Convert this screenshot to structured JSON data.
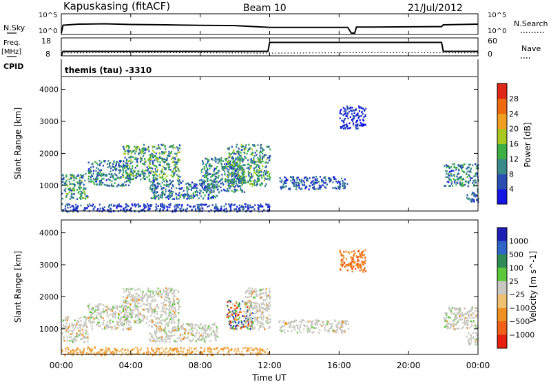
{
  "header": {
    "station": "Kapuskasing (fitACF)",
    "beam": "Beam 10",
    "date": "21/Jul/2012"
  },
  "side_labels": {
    "nsky": "N.Sky",
    "freq_line1": "Freq.",
    "freq_line2": "[MHz]",
    "cpid": "CPID",
    "nsearch": "N.Search",
    "nave": "Nave"
  },
  "mode_label": "themis (tau) -3310",
  "colors": {
    "power_scale": [
      "#1414e6",
      "#2a4fb4",
      "#3a8a8a",
      "#3cb043",
      "#a8c820",
      "#f0a020",
      "#ee6a10",
      "#e02818"
    ],
    "velocity_scale": [
      "#1e1eb4",
      "#2d64c8",
      "#2e8b57",
      "#5cc83c",
      "#c8c8c0",
      "#f0c070",
      "#f09020",
      "#f06018",
      "#e82010"
    ],
    "ground_scatter": "#c8c8c0"
  },
  "chart_data": [
    {
      "type": "line",
      "panel": "noise",
      "ylabel_left": "N.Sky",
      "ylabel_right": "N.Search",
      "yticks_left": [
        "10^5",
        "10^0"
      ],
      "yticks_right": [
        "10^5",
        "10^0"
      ],
      "x_hours": [
        0.0,
        0.1,
        1.0,
        2.5,
        4.0,
        6.0,
        8.0,
        10.0,
        12.0,
        14.0,
        16.5,
        16.7,
        16.9,
        17.0,
        18.0,
        20.0,
        21.9,
        22.0,
        23.0,
        24.0
      ],
      "nsky_log": [
        0.0,
        2.2,
        2.5,
        2.6,
        2.4,
        2.3,
        2.15,
        2.1,
        1.6,
        1.6,
        1.6,
        0.0,
        0.0,
        1.7,
        1.7,
        1.75,
        1.8,
        2.3,
        2.4,
        2.5
      ]
    },
    {
      "type": "line",
      "panel": "frequency-nave",
      "ylabel_left": "Freq. [MHz]",
      "ylabel_right": "Nave",
      "yticks_left": [
        "18",
        "8"
      ],
      "yticks_right": [
        "60",
        "0"
      ],
      "ylim_left": [
        8,
        18
      ],
      "ylim_right": [
        0,
        60
      ],
      "freq_x_hours": [
        0.0,
        0.1,
        11.9,
        12.0,
        16.7,
        17.0,
        21.9,
        22.0,
        24.0
      ],
      "freq_mhz": [
        8,
        10.5,
        10.5,
        15.5,
        15.5,
        15.5,
        15.5,
        10.5,
        10.5
      ],
      "nave_x_hours": [
        0.0,
        6.0,
        12.0,
        18.0,
        24.0
      ],
      "nave": [
        10,
        11,
        9,
        11,
        10
      ]
    },
    {
      "type": "heatmap",
      "panel": "power",
      "title": "themis (tau) -3310",
      "ylabel": "Slant Range [km]",
      "ylim": [
        200,
        4400
      ],
      "yticks": [
        1000,
        2000,
        3000,
        4000
      ],
      "colorbar_label": "Power [dB]",
      "colorbar_ticks": [
        4,
        8,
        12,
        16,
        20,
        24,
        28
      ],
      "colorbar_range": [
        0,
        32
      ],
      "scatter_regions": [
        {
          "t0": 0.0,
          "t1": 1.5,
          "r0": 600,
          "r1": 1400,
          "peak": 16
        },
        {
          "t0": 1.5,
          "t1": 4.0,
          "r0": 1000,
          "r1": 1800,
          "peak": 14
        },
        {
          "t0": 3.5,
          "t1": 6.8,
          "r0": 1200,
          "r1": 2300,
          "peak": 18
        },
        {
          "t0": 5.0,
          "t1": 9.0,
          "r0": 600,
          "r1": 1200,
          "peak": 12
        },
        {
          "t0": 8.0,
          "t1": 10.5,
          "r0": 800,
          "r1": 1900,
          "peak": 14
        },
        {
          "t0": 9.5,
          "t1": 12.0,
          "r0": 1000,
          "r1": 2300,
          "peak": 16
        },
        {
          "t0": 0.0,
          "t1": 12.0,
          "r0": 200,
          "r1": 450,
          "peak": 8
        },
        {
          "t0": 12.5,
          "t1": 16.5,
          "r0": 900,
          "r1": 1300,
          "peak": 10
        },
        {
          "t0": 16.0,
          "t1": 17.5,
          "r0": 2800,
          "r1": 3500,
          "peak": 6
        },
        {
          "t0": 22.0,
          "t1": 24.0,
          "r0": 1000,
          "r1": 1700,
          "peak": 14
        },
        {
          "t0": 23.3,
          "t1": 24.0,
          "r0": 500,
          "r1": 900,
          "peak": 10
        }
      ]
    },
    {
      "type": "heatmap",
      "panel": "velocity",
      "ylabel": "Slant Range [km]",
      "ylim": [
        200,
        4400
      ],
      "yticks": [
        1000,
        2000,
        3000,
        4000
      ],
      "colorbar_label": "Velocity [m s^-1]",
      "colorbar_ticks": [
        "1000",
        "500",
        "100",
        "25",
        "−25",
        "−100",
        "−500",
        "−1000"
      ],
      "xlabel": "Time UT",
      "xticks": [
        "00:00",
        "04:00",
        "08:00",
        "12:00",
        "16:00",
        "20:00",
        "00:00"
      ],
      "xlim_hours": [
        0,
        24
      ],
      "scatter_regions": [
        {
          "t0": 0.0,
          "t1": 1.5,
          "r0": 600,
          "r1": 1400,
          "velocity": 25
        },
        {
          "t0": 1.5,
          "t1": 4.0,
          "r0": 1000,
          "r1": 1800,
          "velocity": 25
        },
        {
          "t0": 3.5,
          "t1": 6.8,
          "r0": 1200,
          "r1": 2300,
          "velocity": 25
        },
        {
          "t0": 5.0,
          "t1": 9.0,
          "r0": 600,
          "r1": 1200,
          "velocity": 25
        },
        {
          "t0": 9.5,
          "t1": 11.0,
          "r0": 1000,
          "r1": 1900,
          "velocity": 300
        },
        {
          "t0": 10.5,
          "t1": 12.0,
          "r0": 1000,
          "r1": 2300,
          "velocity": 25
        },
        {
          "t0": 0.0,
          "t1": 12.0,
          "r0": 200,
          "r1": 450,
          "velocity": -100
        },
        {
          "t0": 12.5,
          "t1": 16.5,
          "r0": 900,
          "r1": 1300,
          "velocity": 25
        },
        {
          "t0": 16.0,
          "t1": 17.5,
          "r0": 2800,
          "r1": 3500,
          "velocity": -500
        },
        {
          "t0": 22.0,
          "t1": 24.0,
          "r0": 1000,
          "r1": 1700,
          "velocity": 25
        },
        {
          "t0": 23.3,
          "t1": 24.0,
          "r0": 500,
          "r1": 900,
          "velocity": 25
        }
      ]
    }
  ]
}
